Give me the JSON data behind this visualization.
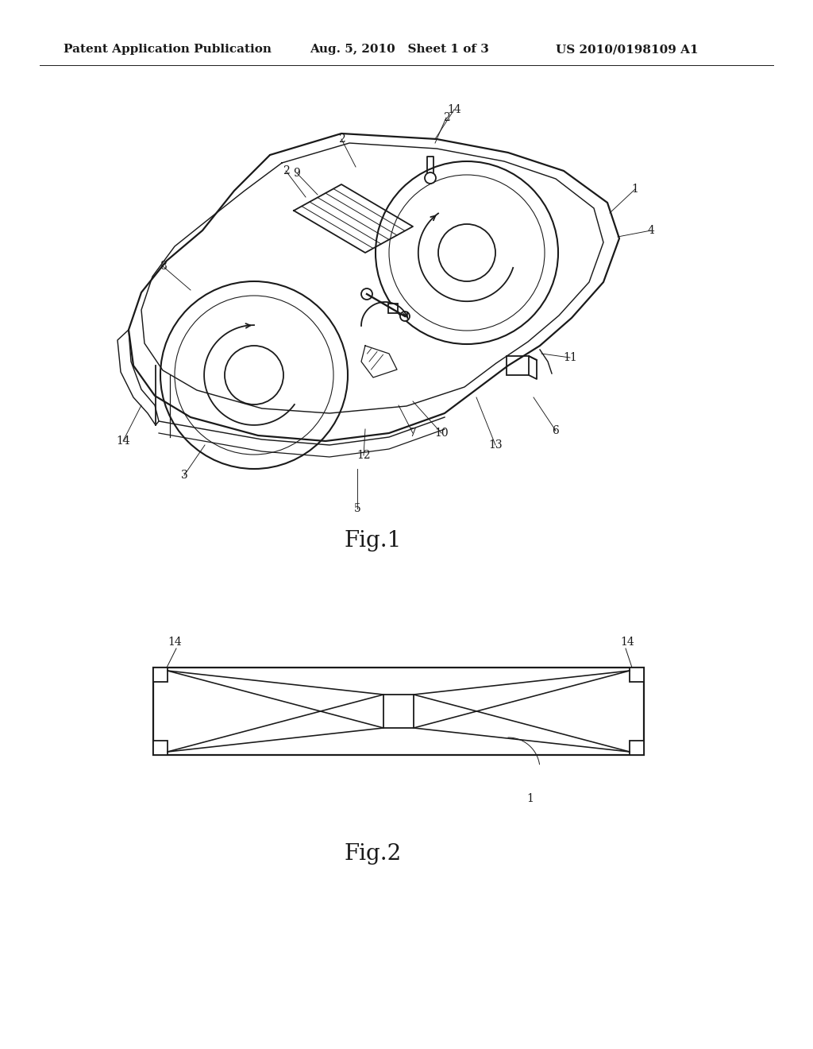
{
  "bg_color": "#ffffff",
  "line_color": "#1a1a1a",
  "header_left": "Patent Application Publication",
  "header_mid": "Aug. 5, 2010   Sheet 1 of 3",
  "header_right": "US 2010/0198109 A1",
  "fig1_label": "Fig.1",
  "fig2_label": "Fig.2",
  "header_fontsize": 11,
  "label_fontsize": 10,
  "caption_fontsize": 20
}
